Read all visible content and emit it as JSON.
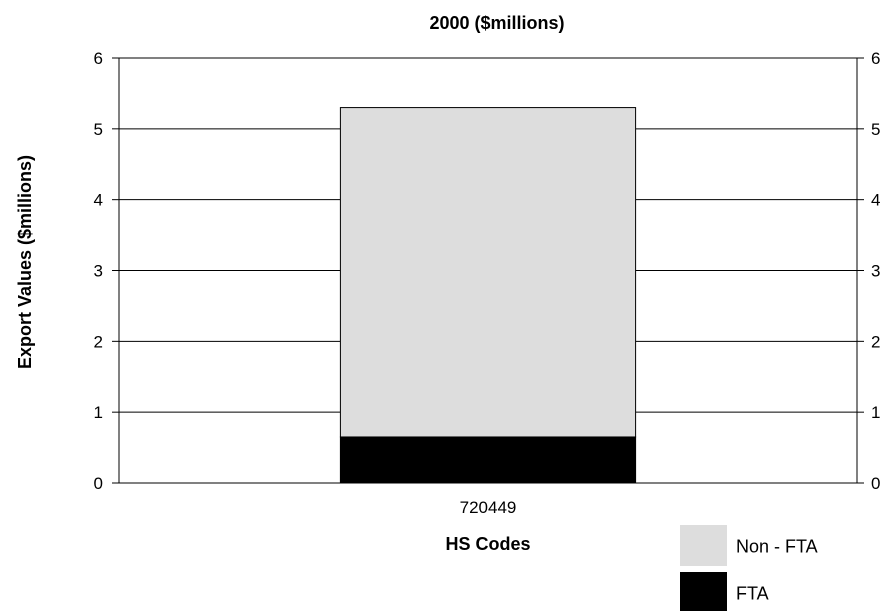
{
  "chart_data": {
    "type": "bar",
    "stacked": true,
    "title": "2000 ($millions)",
    "xlabel": "HS Codes",
    "ylabel": "Export Values ($millions)",
    "categories": [
      "720449"
    ],
    "series": [
      {
        "name": "FTA",
        "values": [
          0.65
        ],
        "color": "#000000"
      },
      {
        "name": "Non - FTA",
        "values": [
          4.65
        ],
        "color": "#dddddd"
      }
    ],
    "ylim": [
      0,
      6
    ],
    "yticks": [
      "0",
      "1",
      "2",
      "3",
      "4",
      "5",
      "6"
    ],
    "grid": true,
    "secondary_y_axis": true,
    "legend": {
      "position": "bottom-right",
      "entries": [
        {
          "label": "Non - FTA",
          "color": "#dddddd"
        },
        {
          "label": "FTA",
          "color": "#000000"
        }
      ]
    }
  }
}
